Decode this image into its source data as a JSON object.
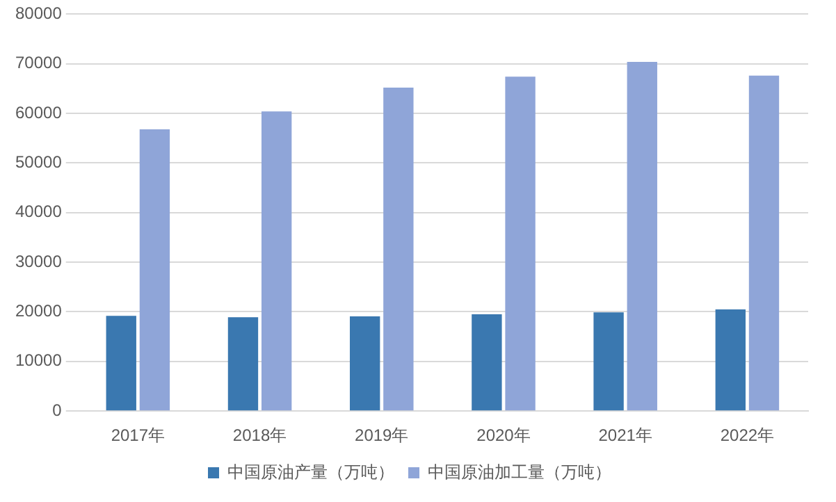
{
  "chart_data": {
    "type": "bar",
    "categories": [
      "2017年",
      "2018年",
      "2019年",
      "2020年",
      "2021年",
      "2022年"
    ],
    "series": [
      {
        "name": "中国原油产量（万吨）",
        "color": "#3a78b0",
        "values": [
          19200,
          18900,
          19100,
          19500,
          19900,
          20500
        ]
      },
      {
        "name": "中国原油加工量（万吨）",
        "color": "#8fa5d8",
        "values": [
          56800,
          60400,
          65200,
          67400,
          70400,
          67600
        ]
      }
    ],
    "ylim": [
      0,
      80000
    ],
    "yticks": [
      0,
      10000,
      20000,
      30000,
      40000,
      50000,
      60000,
      70000,
      80000
    ],
    "grid": "y",
    "legend": "bottom"
  }
}
